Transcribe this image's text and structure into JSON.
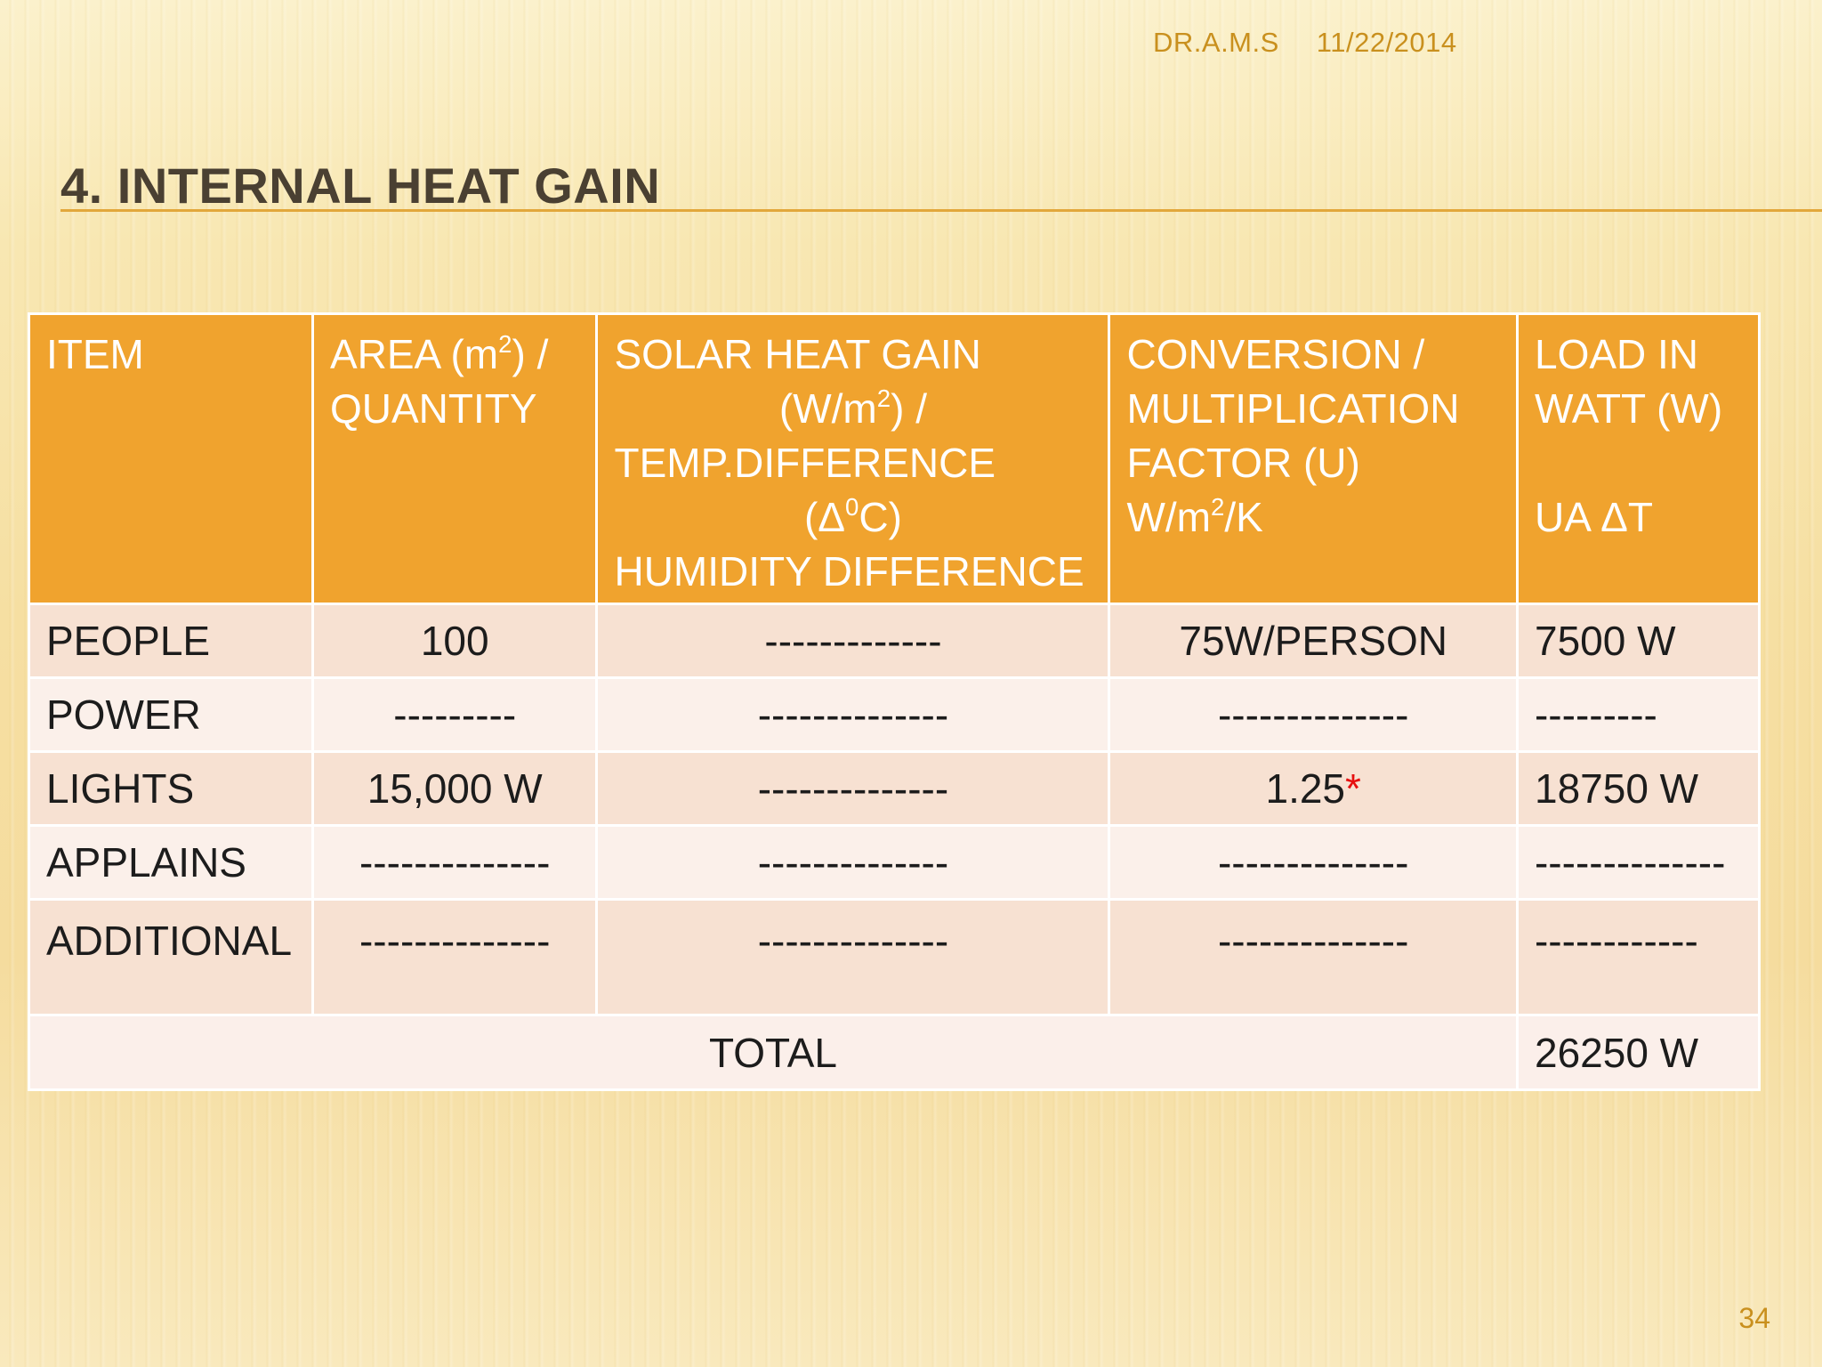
{
  "meta": {
    "author": "DR.A.M.S",
    "date": "11/22/2014"
  },
  "title": "4. INTERNAL HEAT GAIN",
  "table": {
    "headers": {
      "item": "ITEM",
      "area_pre": "AREA  (m",
      "area_sup": "2",
      "area_post": ") /",
      "area_line2": "QUANTITY",
      "solar_line1": "SOLAR HEAT GAIN",
      "solar_line2_pre": "(W/m",
      "solar_line2_sup": "2",
      "solar_line2_post": ") /",
      "solar_line3": "TEMP.DIFFERENCE",
      "solar_line4_pre": "(Δ",
      "solar_line4_sup": "0",
      "solar_line4_post": "C)",
      "solar_line5": "HUMIDITY DIFFERENCE",
      "conv_line1": "CONVERSION /",
      "conv_line2": "MULTIPLICATION",
      "conv_line3": "FACTOR (U)",
      "conv_line4_pre": "W/m",
      "conv_line4_sup": "2",
      "conv_line4_post": "/K",
      "load_line1": "LOAD IN",
      "load_line2": "WATT (W)",
      "load_line3": "UA ΔT"
    },
    "rows": [
      {
        "item": "PEOPLE",
        "area": "100",
        "solar": "-------------",
        "conv": "75W/PERSON",
        "load": "7500 W"
      },
      {
        "item": "POWER",
        "area": "---------",
        "solar": "--------------",
        "conv": "--------------",
        "load": "---------"
      },
      {
        "item": "LIGHTS",
        "area": "15,000 W",
        "solar": "--------------",
        "conv": "1.25",
        "conv_mark": "*",
        "load": "18750 W"
      },
      {
        "item": "APPLAINS",
        "area": "--------------",
        "solar": "--------------",
        "conv": "--------------",
        "load": "--------------"
      },
      {
        "item": "ADDITIONAL",
        "area": "--------------",
        "solar": "--------------",
        "conv": "--------------",
        "load": "------------"
      }
    ],
    "total_label": "TOTAL",
    "total_value": "26250 W"
  },
  "page_number": "34",
  "colors": {
    "header_bg": "#f0a32e",
    "row_a": "#f7e1d2",
    "row_b": "#fbf0ea",
    "total_text": "#e60f0f",
    "title_text": "#4a4032",
    "accent_rule": "#e2a73b"
  }
}
